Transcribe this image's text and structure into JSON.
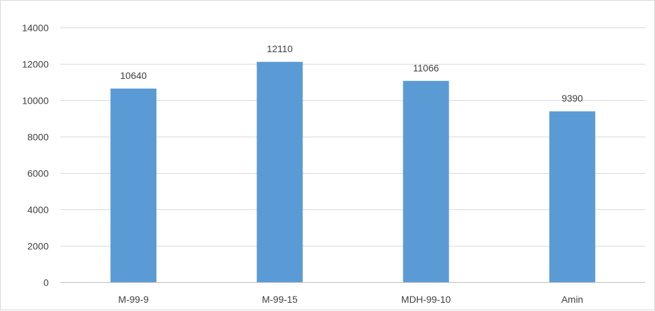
{
  "chart_data": {
    "type": "bar",
    "categories": [
      "M-99-9",
      "M-99-15",
      "MDH-99-10",
      "Amin"
    ],
    "values": [
      10640,
      12110,
      11066,
      9390
    ],
    "data_labels": [
      "10640",
      "12110",
      "11066",
      "9390"
    ],
    "ylim": [
      0,
      14000
    ],
    "yticks": [
      0,
      2000,
      4000,
      6000,
      8000,
      10000,
      12000,
      14000
    ],
    "ytick_labels": [
      "0",
      "2000",
      "4000",
      "6000",
      "8000",
      "10000",
      "12000",
      "14000"
    ],
    "grid": true,
    "legend": "none",
    "title": "",
    "xlabel": "",
    "ylabel": "",
    "colors": {
      "bar": "#5b9bd5",
      "grid": "#d9d9d9",
      "axis": "#bfbfbf",
      "text": "#404040"
    }
  }
}
